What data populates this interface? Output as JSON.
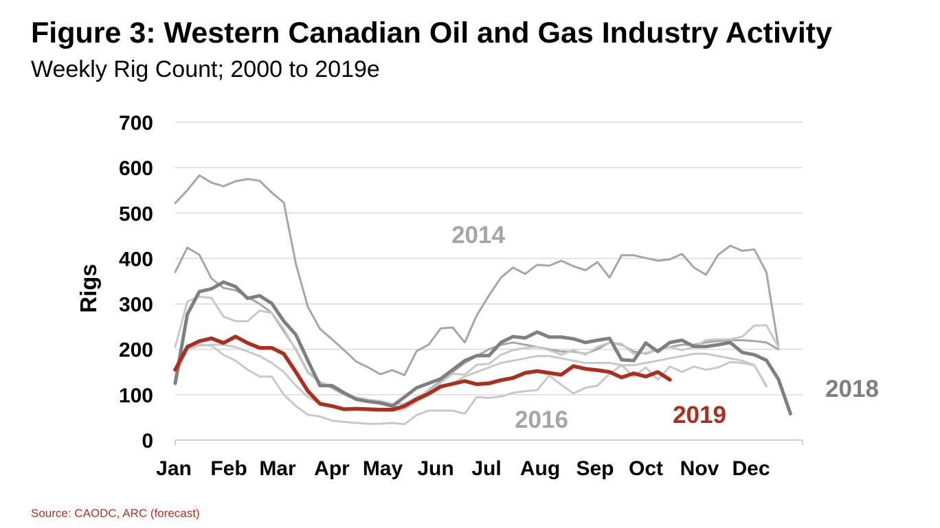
{
  "title": "Figure 3: Western Canadian Oil and Gas Industry Activity",
  "subtitle": "Weekly Rig Count; 2000 to 2019e",
  "source": "Source: CAODC, ARC (forecast)",
  "chart_data": {
    "type": "line",
    "ylabel": "Rigs",
    "xlabel": "",
    "ylim": [
      0,
      700
    ],
    "yticks": [
      0,
      100,
      200,
      300,
      400,
      500,
      600,
      700
    ],
    "grid": true,
    "x_unit": "week",
    "xlim": [
      1,
      53
    ],
    "months": [
      "Jan",
      "Feb",
      "Mar",
      "Apr",
      "May",
      "Jun",
      "Jul",
      "Aug",
      "Sep",
      "Oct",
      "Nov",
      "Dec"
    ],
    "month_start_weeks": [
      1,
      5.4,
      9.4,
      13.8,
      18.1,
      22.4,
      26.7,
      31.1,
      35.4,
      39.7,
      44,
      48.3
    ],
    "colors": {
      "highlight": "#ac2f1d",
      "dark": "#7f7f7f",
      "mid": "#a6a6a6",
      "light": "#c8c8c8",
      "grid": "#d9d9d9"
    },
    "annotations": [
      {
        "text": "2014",
        "color": "#a6a6a6"
      },
      {
        "text": "2016",
        "color": "#a6a6a6"
      },
      {
        "text": "2018",
        "color": "#7f7f7f"
      },
      {
        "text": "2019",
        "color": "#ac2f1d"
      }
    ],
    "series": [
      {
        "style": "mid",
        "weeks_from": 1,
        "values": [
          522,
          550,
          583,
          567,
          559,
          570,
          575,
          571,
          545,
          523,
          388,
          293,
          245,
          222,
          198,
          173,
          160,
          145,
          154,
          143,
          196,
          210,
          246,
          248,
          215,
          275,
          318,
          358,
          380,
          366,
          386,
          384,
          395,
          383,
          374,
          392,
          358,
          407,
          407,
          401,
          395,
          398,
          410,
          380,
          364,
          408,
          428,
          417,
          420,
          370,
          205
        ]
      },
      {
        "style": "mid",
        "weeks_from": 1,
        "values": [
          370,
          424,
          408,
          356,
          335,
          330,
          315,
          300,
          280,
          240,
          200,
          150,
          128,
          115,
          100,
          90,
          85,
          80,
          75,
          70,
          90,
          110,
          130,
          150,
          170,
          185,
          200,
          210,
          215,
          210,
          205,
          200,
          195,
          195,
          190,
          200,
          215,
          210,
          195,
          190,
          200,
          205,
          210,
          210,
          215,
          218,
          220,
          220,
          218,
          215,
          200
        ]
      },
      {
        "style": "light",
        "weeks_from": 1,
        "values": [
          205,
          305,
          316,
          313,
          272,
          262,
          262,
          285,
          280,
          245,
          198,
          148,
          128,
          118,
          100,
          94,
          89,
          86,
          80,
          80,
          94,
          108,
          126,
          146,
          144,
          166,
          168,
          188,
          198,
          203,
          205,
          198,
          188,
          198,
          188,
          205,
          215,
          212,
          190,
          192,
          200,
          205,
          198,
          205,
          220,
          222,
          222,
          228,
          252,
          253,
          205
        ]
      },
      {
        "style": "light",
        "weeks_from": 1,
        "values": [
          135,
          210,
          210,
          208,
          188,
          175,
          155,
          140,
          140,
          100,
          75,
          56,
          52,
          43,
          40,
          38,
          36,
          36,
          38,
          35,
          55,
          65,
          65,
          65,
          58,
          95,
          93,
          96,
          104,
          108,
          110,
          142,
          122,
          103,
          115,
          120,
          146,
          165,
          140,
          160,
          133,
          162,
          150,
          162,
          155,
          160,
          172,
          170,
          165,
          118
        ]
      },
      {
        "style": "light",
        "weeks_from": 1,
        "values": [
          140,
          200,
          208,
          210,
          210,
          205,
          195,
          185,
          170,
          150,
          120,
          95,
          80,
          75,
          70,
          68,
          66,
          65,
          65,
          68,
          85,
          100,
          115,
          125,
          140,
          150,
          160,
          170,
          175,
          180,
          185,
          185,
          180,
          175,
          170,
          170,
          170,
          165,
          165,
          170,
          175,
          180,
          185,
          190,
          190,
          185,
          180,
          175,
          165,
          120
        ]
      },
      {
        "style": "dark",
        "weeks_from": 1,
        "values": [
          125,
          277,
          327,
          333,
          348,
          338,
          312,
          318,
          301,
          262,
          232,
          175,
          120,
          120,
          104,
          90,
          85,
          82,
          75,
          95,
          115,
          125,
          135,
          155,
          175,
          186,
          186,
          215,
          228,
          225,
          238,
          227,
          227,
          223,
          215,
          220,
          224,
          177,
          175,
          214,
          195,
          215,
          220,
          206,
          206,
          210,
          215,
          193,
          188,
          176,
          134,
          58
        ]
      },
      {
        "style": "highlight",
        "weeks_from": 1,
        "values": [
          155,
          205,
          218,
          224,
          214,
          228,
          214,
          203,
          203,
          190,
          150,
          108,
          80,
          75,
          68,
          69,
          68,
          67,
          67,
          75,
          90,
          102,
          118,
          124,
          130,
          123,
          125,
          132,
          137,
          148,
          152,
          148,
          144,
          163,
          157,
          154,
          150,
          138,
          147,
          140,
          150,
          133
        ]
      }
    ]
  }
}
